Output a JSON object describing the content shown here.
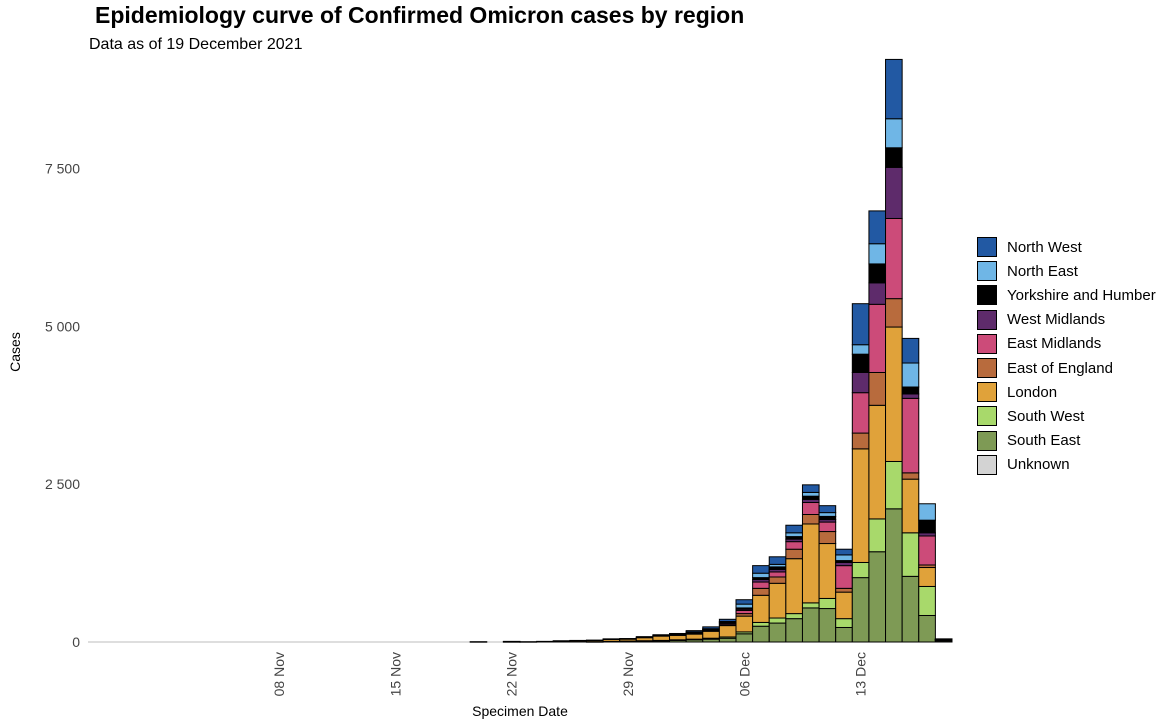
{
  "chart_data": {
    "type": "bar",
    "stacked": true,
    "title": "Epidemiology curve of Confirmed Omicron cases by region",
    "subtitle": "Data as of 19 December 2021",
    "xlabel": "Specimen Date",
    "ylabel": "Cases",
    "ylim": [
      0,
      9300
    ],
    "yticks": [
      0,
      2500,
      5000,
      7500
    ],
    "ytick_labels": [
      "0",
      "2 500",
      "5 000",
      "7 500"
    ],
    "x_range_days": [
      -4,
      47
    ],
    "xticks": [
      {
        "day": 7,
        "label": "08 Nov"
      },
      {
        "day": 14,
        "label": "15 Nov"
      },
      {
        "day": 21,
        "label": "22 Nov"
      },
      {
        "day": 28,
        "label": "29 Nov"
      },
      {
        "day": 35,
        "label": "06 Dec"
      },
      {
        "day": 42,
        "label": "13 Dec"
      }
    ],
    "categories": [
      "20 Nov",
      "21 Nov",
      "22 Nov",
      "23 Nov",
      "24 Nov",
      "25 Nov",
      "26 Nov",
      "27 Nov",
      "28 Nov",
      "29 Nov",
      "30 Nov",
      "01 Dec",
      "02 Dec",
      "03 Dec",
      "04 Dec",
      "05 Dec",
      "06 Dec",
      "07 Dec",
      "08 Dec",
      "09 Dec",
      "10 Dec",
      "11 Dec",
      "12 Dec",
      "13 Dec",
      "14 Dec",
      "15 Dec",
      "16 Dec",
      "17 Dec",
      "18 Dec"
    ],
    "category_days": [
      19,
      20,
      21,
      22,
      23,
      24,
      25,
      26,
      27,
      28,
      29,
      30,
      31,
      32,
      33,
      34,
      35,
      36,
      37,
      38,
      39,
      40,
      41,
      42,
      43,
      44,
      45,
      46,
      47
    ],
    "series": [
      {
        "name": "South East",
        "color": "#7e9a55",
        "values": [
          0,
          0,
          0,
          0,
          0,
          0,
          0,
          5,
          10,
          10,
          15,
          20,
          25,
          35,
          45,
          60,
          130,
          250,
          300,
          370,
          540,
          530,
          230,
          1020,
          1430,
          2110,
          1040,
          420,
          20
        ]
      },
      {
        "name": "South West",
        "color": "#a8d96b",
        "values": [
          0,
          0,
          0,
          0,
          0,
          0,
          0,
          0,
          0,
          5,
          5,
          5,
          10,
          10,
          15,
          20,
          30,
          60,
          80,
          80,
          80,
          160,
          140,
          240,
          520,
          750,
          690,
          460,
          5
        ]
      },
      {
        "name": "London",
        "color": "#e0a23a",
        "values": [
          5,
          0,
          5,
          5,
          10,
          15,
          20,
          20,
          30,
          30,
          50,
          70,
          70,
          80,
          110,
          180,
          250,
          430,
          550,
          870,
          1250,
          870,
          420,
          1800,
          1800,
          2130,
          850,
          300,
          10
        ]
      },
      {
        "name": "East of England",
        "color": "#b86b3d",
        "values": [
          0,
          0,
          0,
          0,
          0,
          0,
          0,
          0,
          0,
          0,
          5,
          5,
          10,
          10,
          10,
          15,
          40,
          110,
          100,
          150,
          150,
          190,
          60,
          250,
          520,
          450,
          100,
          40,
          2
        ]
      },
      {
        "name": "East Midlands",
        "color": "#cc4b79",
        "values": [
          0,
          0,
          0,
          0,
          0,
          0,
          0,
          0,
          0,
          0,
          0,
          5,
          5,
          10,
          15,
          20,
          50,
          100,
          80,
          120,
          190,
          150,
          360,
          640,
          1080,
          1270,
          1180,
          460,
          3
        ]
      },
      {
        "name": "West Midlands",
        "color": "#5e2b6b",
        "values": [
          0,
          0,
          0,
          0,
          0,
          0,
          0,
          0,
          0,
          0,
          0,
          0,
          0,
          5,
          5,
          10,
          20,
          40,
          40,
          40,
          50,
          40,
          50,
          320,
          340,
          810,
          70,
          50,
          2
        ]
      },
      {
        "name": "Yorkshire and Humber",
        "color": "#000000",
        "values": [
          0,
          0,
          0,
          0,
          0,
          0,
          0,
          0,
          0,
          0,
          0,
          0,
          0,
          5,
          5,
          10,
          20,
          30,
          40,
          40,
          50,
          50,
          30,
          290,
          300,
          310,
          110,
          200,
          2
        ]
      },
      {
        "name": "North East",
        "color": "#6fb6e6",
        "values": [
          0,
          0,
          0,
          0,
          0,
          0,
          0,
          0,
          0,
          0,
          0,
          0,
          0,
          5,
          5,
          10,
          60,
          70,
          40,
          60,
          60,
          60,
          90,
          150,
          320,
          460,
          380,
          260,
          1
        ]
      },
      {
        "name": "North West",
        "color": "#2259a3",
        "values": [
          0,
          0,
          5,
          0,
          0,
          5,
          5,
          5,
          10,
          10,
          10,
          10,
          15,
          20,
          30,
          35,
          70,
          120,
          120,
          120,
          120,
          110,
          90,
          650,
          520,
          940,
          390,
          0,
          5
        ]
      },
      {
        "name": "Unknown",
        "color": "#d3d3d3",
        "values": [
          0,
          0,
          0,
          0,
          0,
          0,
          0,
          0,
          0,
          0,
          0,
          0,
          0,
          0,
          0,
          0,
          0,
          0,
          0,
          0,
          0,
          0,
          0,
          0,
          0,
          0,
          0,
          0,
          0
        ]
      }
    ],
    "legend": {
      "position": "right",
      "order": [
        "North West",
        "North East",
        "Yorkshire and Humber",
        "West Midlands",
        "East Midlands",
        "East of England",
        "London",
        "South West",
        "South East",
        "Unknown"
      ]
    }
  }
}
